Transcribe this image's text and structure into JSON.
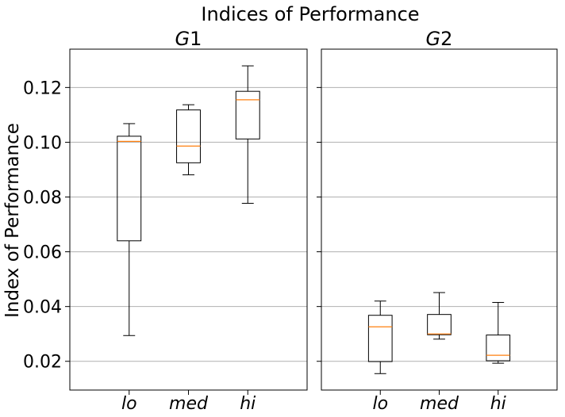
{
  "chart_data": {
    "type": "boxplot",
    "title": "Indices of Performance",
    "ylabel": "Index of Performance",
    "ylim": [
      0.0095,
      0.134
    ],
    "yticks": [
      0.02,
      0.04,
      0.06,
      0.08,
      0.1,
      0.12
    ],
    "ytick_labels": [
      "0.02",
      "0.04",
      "0.06",
      "0.08",
      "0.10",
      "0.12"
    ],
    "grid": "horizontal",
    "colors": {
      "box": "#000000",
      "median": "#ff7f0e",
      "grid": "#b0b0b0"
    },
    "panels": [
      {
        "title_main": "G",
        "title_sub": "1",
        "categories": [
          "lo",
          "med",
          "hi"
        ],
        "boxes": [
          {
            "whislo": 0.0294,
            "q1": 0.064,
            "med": 0.1003,
            "q3": 0.1022,
            "whishi": 0.1068
          },
          {
            "whislo": 0.0881,
            "q1": 0.0925,
            "med": 0.0986,
            "q3": 0.1118,
            "whishi": 0.1137
          },
          {
            "whislo": 0.0777,
            "q1": 0.1012,
            "med": 0.1155,
            "q3": 0.1186,
            "whishi": 0.1279
          }
        ]
      },
      {
        "title_main": "G",
        "title_sub": "2",
        "categories": [
          "lo",
          "med",
          "hi"
        ],
        "boxes": [
          {
            "whislo": 0.0155,
            "q1": 0.0199,
            "med": 0.0326,
            "q3": 0.0368,
            "whishi": 0.042
          },
          {
            "whislo": 0.0281,
            "q1": 0.0297,
            "med": 0.03,
            "q3": 0.0371,
            "whishi": 0.0451
          },
          {
            "whislo": 0.0193,
            "q1": 0.0202,
            "med": 0.0222,
            "q3": 0.0296,
            "whishi": 0.0415
          }
        ]
      }
    ]
  }
}
